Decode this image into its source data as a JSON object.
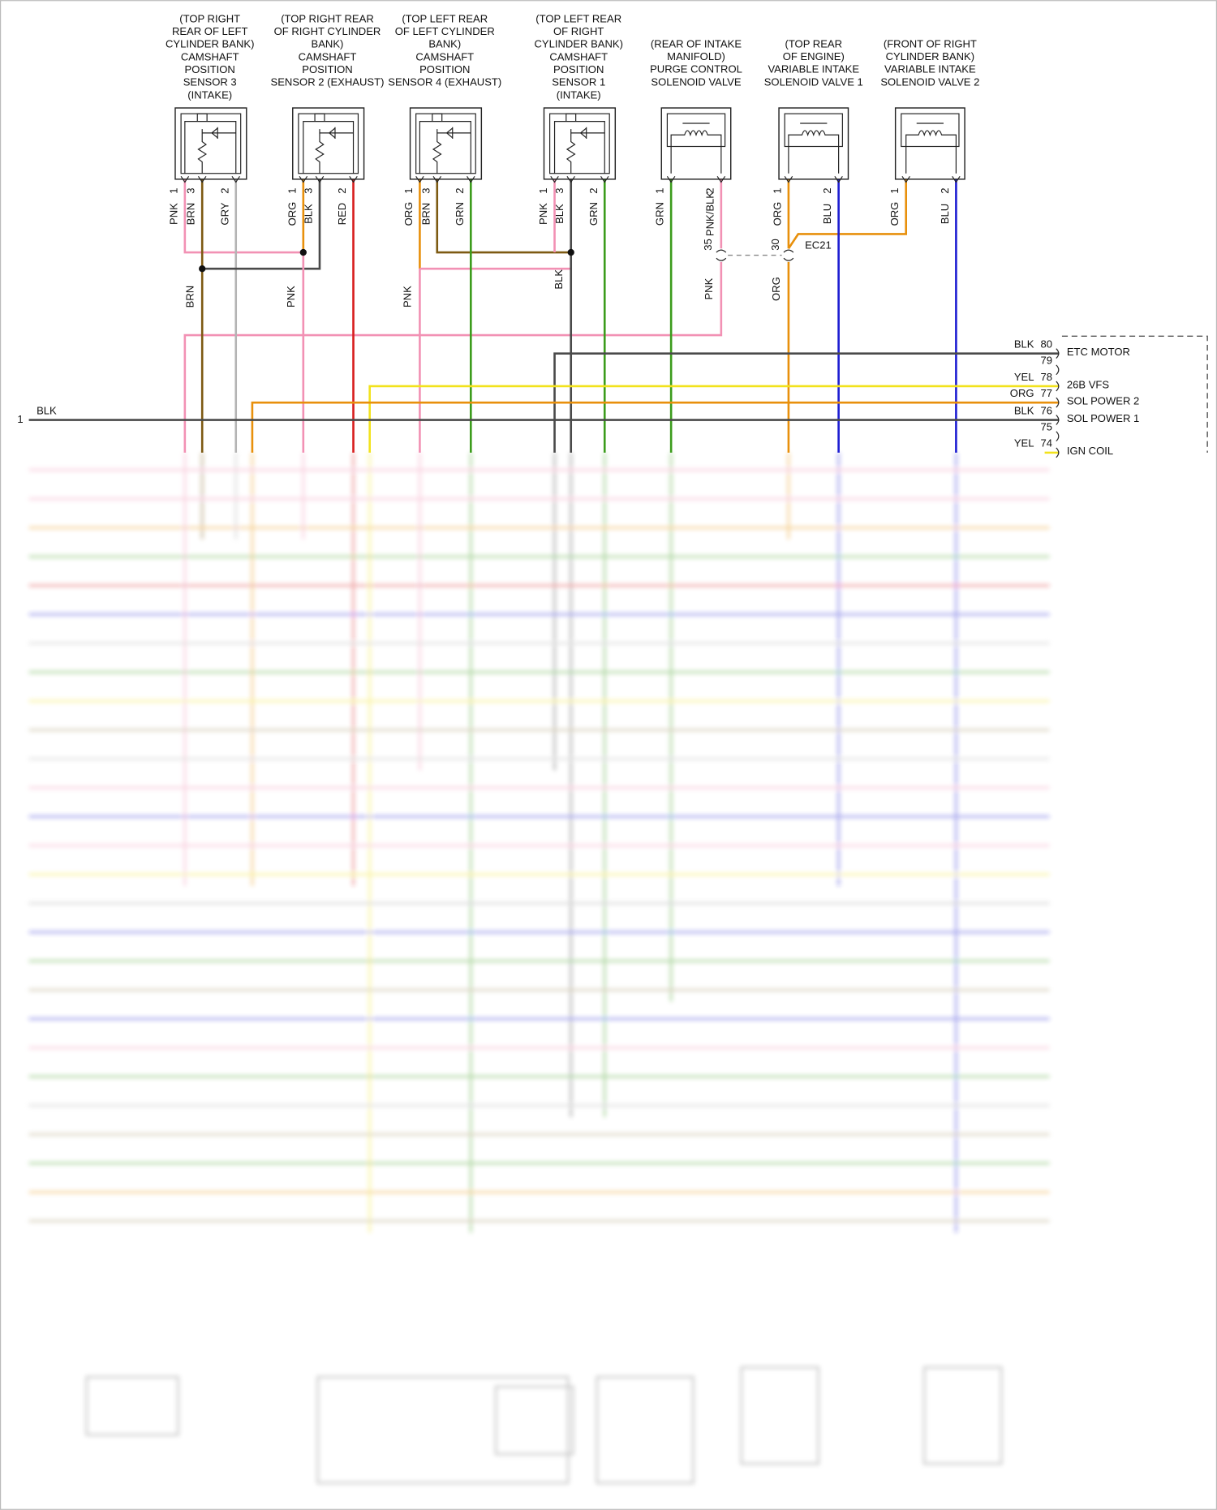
{
  "components": [
    {
      "lines": [
        "(TOP RIGHT",
        "REAR OF LEFT",
        "CYLINDER BANK)",
        "CAMSHAFT",
        "POSITION",
        "SENSOR 3",
        "(INTAKE)"
      ],
      "kind": "sensor",
      "pins": [
        {
          "number": "1",
          "wire": "PNK"
        },
        {
          "number": "3",
          "wire": "BRN"
        },
        {
          "number": "2",
          "wire": "GRY"
        }
      ]
    },
    {
      "lines": [
        "(TOP RIGHT REAR",
        "OF RIGHT CYLINDER",
        "BANK)",
        "CAMSHAFT",
        "POSITION",
        "SENSOR 2 (EXHAUST)"
      ],
      "kind": "sensor",
      "pins": [
        {
          "number": "1",
          "wire": "ORG"
        },
        {
          "number": "3",
          "wire": "BLK"
        },
        {
          "number": "2",
          "wire": "RED"
        }
      ]
    },
    {
      "lines": [
        "(TOP LEFT REAR",
        "OF LEFT CYLINDER",
        "BANK)",
        "CAMSHAFT",
        "POSITION",
        "SENSOR 4 (EXHAUST)"
      ],
      "kind": "sensor",
      "pins": [
        {
          "number": "1",
          "wire": "ORG"
        },
        {
          "number": "3",
          "wire": "BRN"
        },
        {
          "number": "2",
          "wire": "GRN"
        }
      ]
    },
    {
      "lines": [
        "(TOP LEFT REAR",
        "OF RIGHT",
        "CYLINDER BANK)",
        "CAMSHAFT",
        "POSITION",
        "SENSOR 1",
        "(INTAKE)"
      ],
      "kind": "sensor",
      "pins": [
        {
          "number": "1",
          "wire": "PNK"
        },
        {
          "number": "3",
          "wire": "BLK"
        },
        {
          "number": "2",
          "wire": "GRN"
        }
      ]
    },
    {
      "lines": [
        "(REAR OF INTAKE",
        "MANIFOLD)",
        "PURGE CONTROL",
        "SOLENOID VALVE"
      ],
      "kind": "solenoid",
      "pins": [
        {
          "number": "1",
          "wire": "GRN"
        },
        {
          "number": "2",
          "wire": "PNK/BLK"
        }
      ]
    },
    {
      "lines": [
        "(TOP REAR",
        "OF ENGINE)",
        "VARIABLE INTAKE",
        "SOLENOID VALVE 1"
      ],
      "kind": "solenoid",
      "pins": [
        {
          "number": "1",
          "wire": "ORG"
        },
        {
          "number": "2",
          "wire": "BLU"
        }
      ]
    },
    {
      "lines": [
        "(FRONT OF RIGHT",
        "CYLINDER BANK)",
        "VARIABLE INTAKE",
        "SOLENOID VALVE 2"
      ],
      "kind": "solenoid",
      "pins": [
        {
          "number": "1",
          "wire": "ORG"
        },
        {
          "number": "2",
          "wire": "BLU"
        }
      ]
    }
  ],
  "wire_labels": [
    "BRN",
    "PNK",
    "PNK",
    "BLK",
    "PNK",
    "ORG"
  ],
  "inline_connectors": [
    {
      "pin": "35"
    },
    {
      "pin": "30",
      "id": "EC21"
    }
  ],
  "left_pin": {
    "number": "1",
    "wire": "BLK"
  },
  "ecm_pins": [
    {
      "number": "80",
      "wire": "BLK",
      "function": "ETC MOTOR"
    },
    {
      "number": "79"
    },
    {
      "number": "78",
      "wire": "YEL",
      "function": "26B VFS"
    },
    {
      "number": "77",
      "wire": "ORG",
      "function": "SOL POWER 2"
    },
    {
      "number": "76",
      "wire": "BLK",
      "function": "SOL POWER 1"
    },
    {
      "number": "75"
    },
    {
      "number": "74",
      "wire": "YEL",
      "function": "IGN COIL"
    }
  ],
  "wire_colors": {
    "PNK": "#f291b4",
    "BRN": "#7d5a12",
    "GRY": "#b4b4b4",
    "ORG": "#e8900c",
    "BLK": "#4a4a4a",
    "RED": "#d81e1e",
    "GRN": "#3c9c1c",
    "BLU": "#1e1ed2",
    "YEL": "#f2e21c",
    "PNK/BLK": "#f291b4"
  }
}
